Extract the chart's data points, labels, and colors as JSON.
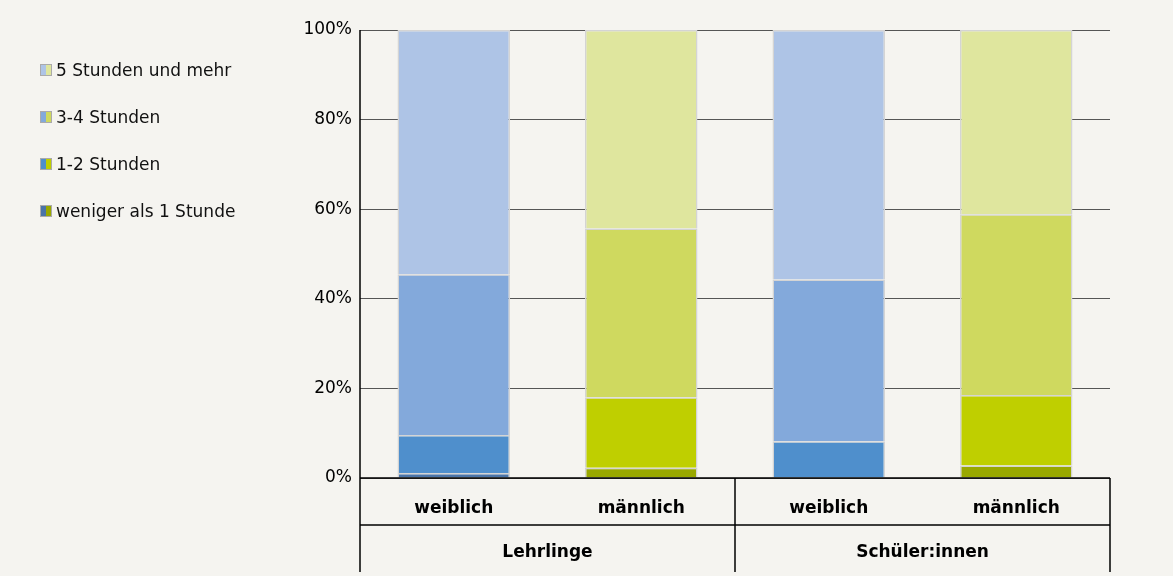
{
  "chart_data": {
    "type": "bar",
    "stacked": true,
    "categories": [
      "weiblich",
      "männlich",
      "weiblich",
      "männlich"
    ],
    "annotations": [
      "Lehrlinge",
      "Schüler:innen"
    ],
    "ylim": [
      0,
      100
    ],
    "yticks": [
      {
        "value": 0,
        "label": "0%"
      },
      {
        "value": 20,
        "label": "20%"
      },
      {
        "value": 40,
        "label": "40%"
      },
      {
        "value": 60,
        "label": "60%"
      },
      {
        "value": 80,
        "label": "80%"
      },
      {
        "value": 100,
        "label": "100%"
      }
    ],
    "grid": "y",
    "legend": "left",
    "series": [
      {
        "name": "weniger als 1 Stunde",
        "colors": [
          "#4a74a8",
          "#99a800",
          "#4a74a8",
          "#99a800"
        ],
        "values": [
          1.1,
          2.3,
          null,
          2.8
        ]
      },
      {
        "name": "1-2 Stunden",
        "colors": [
          "#4f8fcc",
          "#bfcf00",
          "#4f8fcc",
          "#bfcf00"
        ],
        "values": [
          8.5,
          15.7,
          8.2,
          15.7
        ]
      },
      {
        "name": "3-4 Stunden",
        "colors": [
          "#83a9db",
          "#cfd95f",
          "#83a9db",
          "#cfd95f"
        ],
        "values": [
          35.9,
          37.7,
          36.1,
          40.4
        ]
      },
      {
        "name": "5 Stunden und mehr",
        "colors": [
          "#aec4e6",
          "#dfe69e",
          "#aec4e6",
          "#dfe69e"
        ],
        "values": [
          54.5,
          44.3,
          55.7,
          41.1
        ]
      }
    ]
  }
}
